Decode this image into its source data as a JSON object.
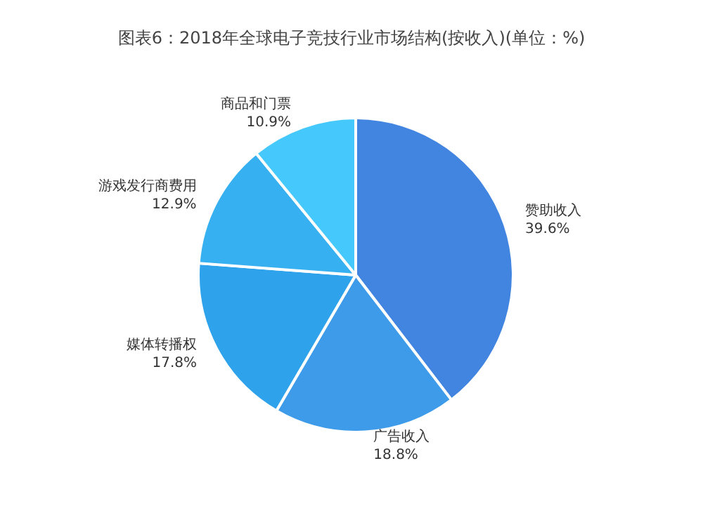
{
  "chart_data": {
    "type": "pie",
    "title": "图表6：2018年全球电子竞技行业市场结构(按收入)(单位：%)",
    "categories": [
      "赞助收入",
      "广告收入",
      "媒体转播权",
      "游戏发行商费用",
      "商品和门票"
    ],
    "values": [
      39.6,
      18.8,
      17.8,
      12.9,
      10.9
    ],
    "colors": [
      "#4285e0",
      "#3d9be9",
      "#2fa2ec",
      "#36b0f0",
      "#45c8fb"
    ],
    "value_labels": [
      "39.6%",
      "18.8%",
      "17.8%",
      "12.9%",
      "10.9%"
    ],
    "legend": false
  }
}
